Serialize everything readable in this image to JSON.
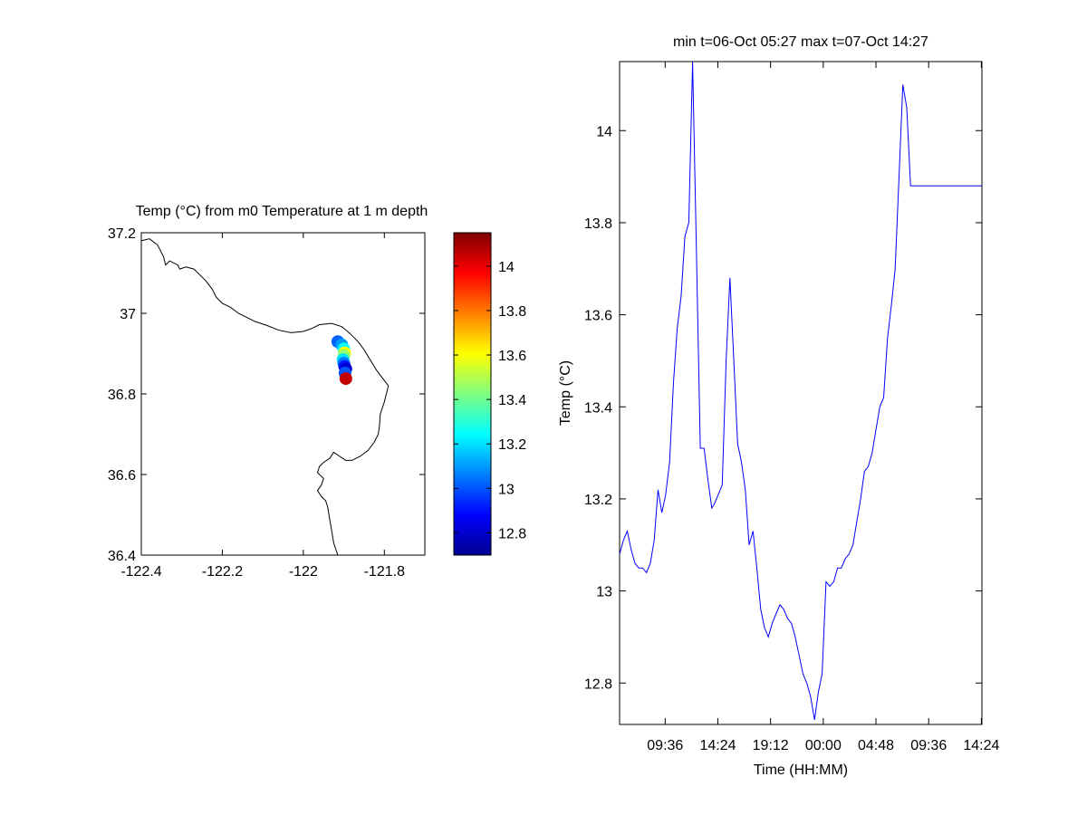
{
  "colors": {
    "axis": "#000000",
    "coast": "#000000",
    "series_line": "#0000ff",
    "background": "#ffffff"
  },
  "chart_data": [
    {
      "type": "scatter",
      "title": "Temp (°C) from m0 Temperature at 1 m depth",
      "xlabel": "",
      "ylabel": "",
      "xlim": [
        -122.4,
        -121.7
      ],
      "ylim": [
        36.4,
        37.2
      ],
      "x_ticks": [
        "-122.4",
        "-122.2",
        "-122",
        "-121.8"
      ],
      "y_ticks": [
        "36.4",
        "36.6",
        "36.8",
        "37",
        "37.2"
      ],
      "coastline": [
        [
          -122.4,
          37.18
        ],
        [
          -122.38,
          37.185
        ],
        [
          -122.36,
          37.17
        ],
        [
          -122.345,
          37.14
        ],
        [
          -122.34,
          37.12
        ],
        [
          -122.33,
          37.13
        ],
        [
          -122.31,
          37.12
        ],
        [
          -122.305,
          37.11
        ],
        [
          -122.29,
          37.115
        ],
        [
          -122.27,
          37.11
        ],
        [
          -122.255,
          37.095
        ],
        [
          -122.24,
          37.08
        ],
        [
          -122.225,
          37.06
        ],
        [
          -122.215,
          37.04
        ],
        [
          -122.2,
          37.025
        ],
        [
          -122.18,
          37.015
        ],
        [
          -122.16,
          37.0
        ],
        [
          -122.14,
          36.99
        ],
        [
          -122.12,
          36.98
        ],
        [
          -122.09,
          36.97
        ],
        [
          -122.06,
          36.958
        ],
        [
          -122.03,
          36.952
        ],
        [
          -122.0,
          36.955
        ],
        [
          -121.98,
          36.962
        ],
        [
          -121.96,
          36.972
        ],
        [
          -121.93,
          36.975
        ],
        [
          -121.905,
          36.967
        ],
        [
          -121.885,
          36.95
        ],
        [
          -121.865,
          36.93
        ],
        [
          -121.85,
          36.91
        ],
        [
          -121.835,
          36.885
        ],
        [
          -121.82,
          36.86
        ],
        [
          -121.805,
          36.84
        ],
        [
          -121.79,
          36.82
        ],
        [
          -121.795,
          36.8
        ],
        [
          -121.8,
          36.78
        ],
        [
          -121.81,
          36.75
        ],
        [
          -121.812,
          36.72
        ],
        [
          -121.815,
          36.7
        ],
        [
          -121.825,
          36.68
        ],
        [
          -121.84,
          36.66
        ],
        [
          -121.86,
          36.645
        ],
        [
          -121.88,
          36.635
        ],
        [
          -121.895,
          36.635
        ],
        [
          -121.91,
          36.645
        ],
        [
          -121.925,
          36.655
        ],
        [
          -121.935,
          36.64
        ],
        [
          -121.95,
          36.63
        ],
        [
          -121.96,
          36.62
        ],
        [
          -121.965,
          36.605
        ],
        [
          -121.95,
          36.59
        ],
        [
          -121.955,
          36.575
        ],
        [
          -121.965,
          36.56
        ],
        [
          -121.955,
          36.545
        ],
        [
          -121.945,
          36.535
        ],
        [
          -121.94,
          36.52
        ],
        [
          -121.935,
          36.49
        ],
        [
          -121.93,
          36.46
        ],
        [
          -121.925,
          36.43
        ],
        [
          -121.915,
          36.4
        ]
      ],
      "points": [
        {
          "lon": -121.915,
          "lat": 36.93,
          "value": 13.02
        },
        {
          "lon": -121.905,
          "lat": 36.922,
          "value": 13.1
        },
        {
          "lon": -121.9,
          "lat": 36.912,
          "value": 13.25
        },
        {
          "lon": -121.898,
          "lat": 36.902,
          "value": 13.6
        },
        {
          "lon": -121.9,
          "lat": 36.895,
          "value": 13.45
        },
        {
          "lon": -121.902,
          "lat": 36.885,
          "value": 13.2
        },
        {
          "lon": -121.9,
          "lat": 36.876,
          "value": 13.05
        },
        {
          "lon": -121.898,
          "lat": 36.868,
          "value": 12.92
        },
        {
          "lon": -121.895,
          "lat": 36.862,
          "value": 12.82
        },
        {
          "lon": -121.897,
          "lat": 36.852,
          "value": 13.0
        },
        {
          "lon": -121.895,
          "lat": 36.838,
          "value": 14.05
        }
      ],
      "colorbar": {
        "range": [
          12.7,
          14.15
        ],
        "ticks": [
          "12.8",
          "13",
          "13.2",
          "13.4",
          "13.6",
          "13.8",
          "14"
        ]
      }
    },
    {
      "type": "line",
      "title": "min t=06-Oct 05:27 max t=07-Oct 14:27",
      "xlabel": "Time (HH:MM)",
      "ylabel": "Temp (°C)",
      "xlim_hours": [
        5.45,
        38.45
      ],
      "ylim": [
        12.71,
        14.15
      ],
      "x_ticks": [
        {
          "label": "09:36",
          "hour": 9.6
        },
        {
          "label": "14:24",
          "hour": 14.4
        },
        {
          "label": "19:12",
          "hour": 19.2
        },
        {
          "label": "00:00",
          "hour": 24.0
        },
        {
          "label": "04:48",
          "hour": 28.8
        },
        {
          "label": "09:36",
          "hour": 33.6
        },
        {
          "label": "14:24",
          "hour": 38.4
        }
      ],
      "y_ticks": [
        "12.8",
        "13",
        "13.2",
        "13.4",
        "13.6",
        "13.8",
        "14"
      ],
      "series": [
        {
          "x": [
            5.45,
            5.8,
            6.15,
            6.5,
            6.85,
            7.2,
            7.55,
            7.9,
            8.25,
            8.6,
            8.95,
            9.3,
            9.65,
            10.0,
            10.35,
            10.7,
            11.05,
            11.4,
            11.75,
            12.1,
            12.45,
            12.8,
            13.15,
            13.5,
            13.85,
            14.1,
            14.45,
            14.8,
            15.15,
            15.5,
            15.85,
            16.2,
            16.55,
            16.9,
            17.25,
            17.6,
            17.95,
            18.3,
            18.65,
            19.0,
            19.35,
            19.7,
            20.05,
            20.4,
            20.75,
            21.1,
            21.45,
            21.8,
            22.15,
            22.5,
            22.85,
            23.2,
            23.55,
            23.9,
            24.25,
            24.6,
            24.95,
            25.3,
            25.65,
            26.0,
            26.35,
            26.7,
            27.05,
            27.4,
            27.75,
            28.1,
            28.45,
            28.8,
            29.15,
            29.5,
            29.85,
            30.2,
            30.55,
            30.9,
            31.25,
            31.6,
            31.95,
            32.3,
            32.65,
            33.0,
            33.35,
            33.7,
            34.05,
            34.4,
            34.75,
            35.1,
            35.45,
            35.8,
            36.15,
            36.5,
            36.85,
            37.2,
            37.55,
            37.9,
            38.25,
            38.45
          ],
          "y": [
            13.08,
            13.11,
            13.13,
            13.09,
            13.06,
            13.05,
            13.05,
            13.04,
            13.06,
            13.11,
            13.22,
            13.17,
            13.21,
            13.28,
            13.45,
            13.57,
            13.64,
            13.77,
            13.8,
            14.15,
            13.74,
            13.31,
            13.31,
            13.24,
            13.18,
            13.19,
            13.21,
            13.23,
            13.5,
            13.68,
            13.5,
            13.32,
            13.28,
            13.22,
            13.1,
            13.13,
            13.05,
            12.96,
            12.92,
            12.9,
            12.93,
            12.95,
            12.97,
            12.96,
            12.94,
            12.93,
            12.9,
            12.86,
            12.82,
            12.8,
            12.77,
            12.72,
            12.78,
            12.82,
            13.02,
            13.01,
            13.02,
            13.05,
            13.05,
            13.07,
            13.08,
            13.1,
            13.15,
            13.2,
            13.26,
            13.27,
            13.3,
            13.35,
            13.4,
            13.42,
            13.55,
            13.62,
            13.7,
            13.9,
            14.1,
            14.05,
            13.88,
            13.88,
            13.88,
            13.88,
            13.88,
            13.88,
            13.88,
            13.88,
            13.88,
            13.88,
            13.88,
            13.88,
            13.88,
            13.88,
            13.88,
            13.88,
            13.88,
            13.88,
            13.88,
            13.88
          ]
        }
      ]
    }
  ]
}
